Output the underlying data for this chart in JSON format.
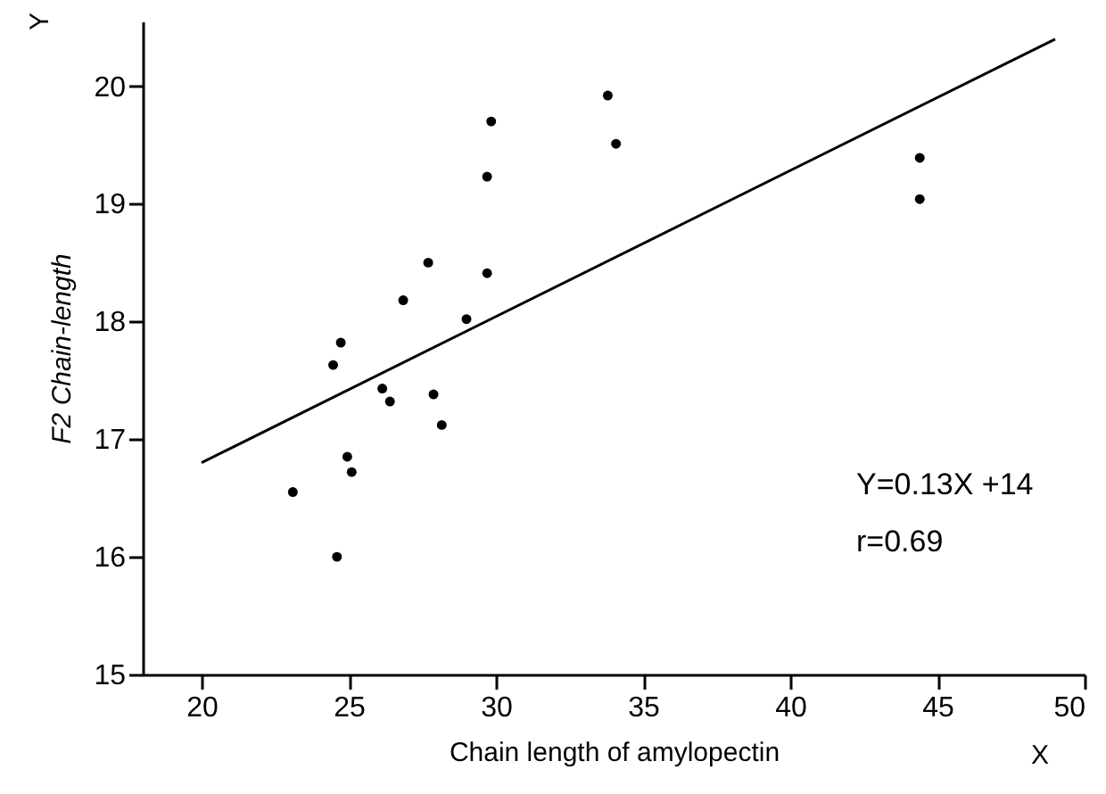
{
  "chart_data": {
    "type": "scatter",
    "xlabel": "Chain length of amylopectin",
    "ylabel": "F2 Chain-length",
    "xlim": [
      18,
      50
    ],
    "xticks": [
      20,
      25,
      30,
      35,
      40,
      45,
      50
    ],
    "ylim": [
      15,
      20.55
    ],
    "yticks": [
      15,
      16,
      17,
      18,
      19,
      20
    ],
    "grid": false,
    "series": [
      {
        "marker": "circle",
        "color": "#000000",
        "x": [
          23.1,
          24.47,
          24.73,
          24.6,
          24.95,
          25.1,
          26.14,
          26.4,
          26.85,
          27.7,
          27.88,
          28.16,
          29.0,
          29.7,
          29.7,
          29.84,
          33.8,
          34.08,
          44.4,
          44.4
        ],
        "values": [
          16.55,
          17.63,
          17.82,
          16.0,
          16.85,
          16.72,
          17.43,
          17.32,
          18.18,
          18.5,
          17.38,
          17.12,
          18.02,
          18.41,
          19.23,
          19.7,
          19.92,
          19.51,
          19.39,
          19.04
        ]
      },
      {
        "type": "line",
        "color": "#000000",
        "x": [
          20,
          49
        ],
        "values": [
          16.8,
          20.4
        ]
      }
    ],
    "annotations": [
      "Y=0.13X +14",
      "r=0.69",
      "X",
      "Y"
    ]
  }
}
